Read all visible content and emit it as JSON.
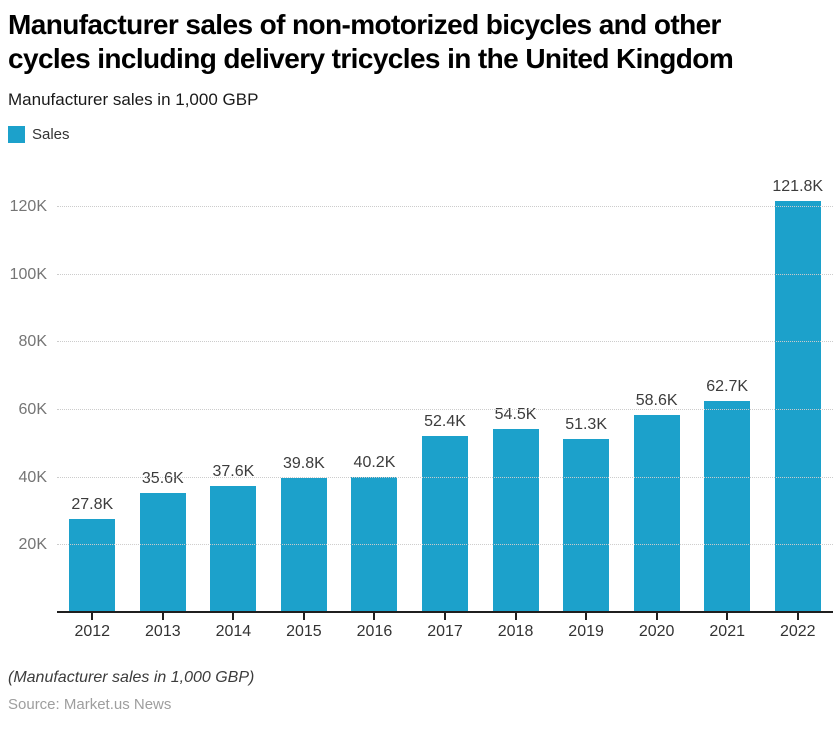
{
  "header": {
    "title": "Manufacturer sales of non-motorized bicycles and other cycles including delivery tricycles in the United Kingdom",
    "title_lines": [
      "Manufacturer sales of non-motorized bicycles and other",
      "cycles including delivery tricycles in the United Kingdom"
    ],
    "subtitle": "Manufacturer sales in 1,000 GBP"
  },
  "legend": {
    "label": "Sales",
    "color": "#1CA1CB"
  },
  "chart_data": {
    "type": "bar",
    "title": "Manufacturer sales of non-motorized bicycles and other cycles including delivery tricycles in the United Kingdom",
    "xlabel": "",
    "ylabel": "Manufacturer sales in 1,000 GBP",
    "legend_entries": [
      "Sales"
    ],
    "legend_position": "top-left",
    "grid": "horizontal-dotted",
    "categories": [
      "2012",
      "2013",
      "2014",
      "2015",
      "2016",
      "2017",
      "2018",
      "2019",
      "2020",
      "2021",
      "2022"
    ],
    "values": [
      27.8,
      35.6,
      37.6,
      39.8,
      40.2,
      52.4,
      54.5,
      51.3,
      58.6,
      62.7,
      121.8
    ],
    "value_labels": [
      "27.8K",
      "35.6K",
      "37.6K",
      "39.8K",
      "40.2K",
      "52.4K",
      "54.5K",
      "51.3K",
      "58.6K",
      "62.7K",
      "121.8K"
    ],
    "unit": "K (1,000 GBP)",
    "ytick_values": [
      20,
      40,
      60,
      80,
      100,
      120
    ],
    "ytick_labels": [
      "20K",
      "40K",
      "60K",
      "80K",
      "100K",
      "120K"
    ],
    "ylim": [
      0,
      131.8
    ],
    "bar_color": "#1CA1CB"
  },
  "footer": {
    "note": "(Manufacturer sales in 1,000 GBP)",
    "source": "Source: Market.us News"
  }
}
